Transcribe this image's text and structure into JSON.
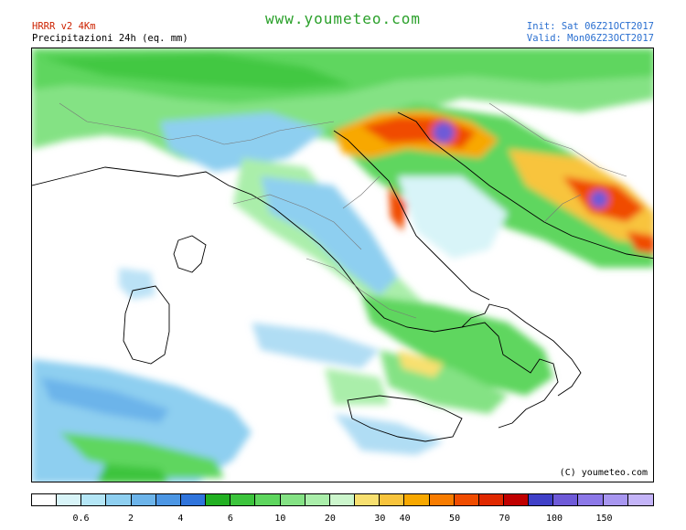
{
  "header": {
    "model": "HRRR v2 4Km",
    "product": "Precipitazioni 24h (eq. mm)",
    "site": "www.youmeteo.com",
    "init": "Init: Sat 06Z21OCT2017",
    "valid": "Valid: Mon06Z23OCT2017"
  },
  "map": {
    "copyright": "(C) youmeteo.com"
  },
  "legend": {
    "colors": [
      "#ffffff",
      "#d8f4f8",
      "#b4e6f6",
      "#8ecff0",
      "#6cb4ea",
      "#4c96e4",
      "#2f74dc",
      "#22b022",
      "#3cc43c",
      "#5ed65e",
      "#84e284",
      "#aaeeaa",
      "#ccf6cc",
      "#f8e070",
      "#f8c43c",
      "#f8a800",
      "#f87c00",
      "#f04c00",
      "#e02800",
      "#c00000",
      "#4040c8",
      "#6e5ad8",
      "#8c78e8",
      "#a896f0",
      "#c4b4f8"
    ],
    "labels": [
      "0.6",
      "2",
      "4",
      "6",
      "10",
      "20",
      "30",
      "40",
      "50",
      "70",
      "100",
      "150"
    ]
  }
}
